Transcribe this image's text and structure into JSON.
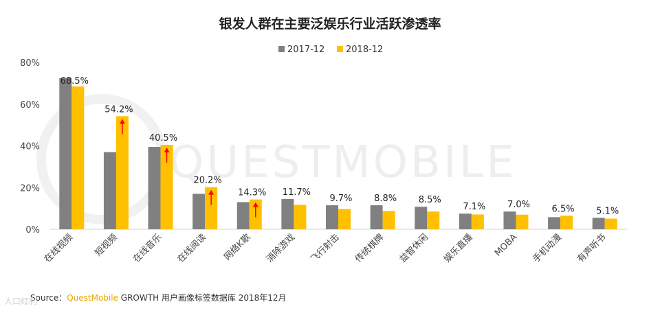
{
  "chart_data": {
    "type": "bar",
    "title": "银发人群在主要泛娱乐行业活跃渗透率",
    "categories": [
      "在线视频",
      "短视频",
      "在线音乐",
      "在线阅读",
      "网络K歌",
      "消除游戏",
      "飞行射击",
      "传统棋牌",
      "益智休闲",
      "娱乐直播",
      "MOBA",
      "手机动漫",
      "有声听书"
    ],
    "series": [
      {
        "name": "2017-12",
        "values": [
          72.5,
          37.0,
          39.5,
          17.0,
          13.0,
          14.5,
          11.5,
          11.5,
          10.8,
          7.5,
          8.5,
          5.8,
          5.5
        ]
      },
      {
        "name": "2018-12",
        "values": [
          68.5,
          54.2,
          40.5,
          20.2,
          14.3,
          11.7,
          9.7,
          8.8,
          8.5,
          7.1,
          7.0,
          6.5,
          5.1
        ]
      }
    ],
    "data_labels": [
      "68.5%",
      "54.2%",
      "40.5%",
      "20.2%",
      "14.3%",
      "11.7%",
      "9.7%",
      "8.8%",
      "8.5%",
      "7.1%",
      "7.0%",
      "6.5%",
      "5.1%"
    ],
    "highlight_arrows": [
      "短视频",
      "在线音乐",
      "在线阅读",
      "网络K歌"
    ],
    "y_ticks": [
      "0%",
      "20%",
      "40%",
      "60%",
      "80%"
    ],
    "ylim": [
      0,
      80
    ],
    "legend_position": "top-center",
    "grid": false,
    "colors": {
      "2017-12": "#808080",
      "2018-12": "#ffc000",
      "arrow": "#ff0000"
    }
  },
  "watermark": "QUESTMOBILE",
  "footer": {
    "source_prefix": "Source：",
    "brand": "QuestMobile",
    "source_rest": " GROWTH 用户画像标签数据库 2018年12月"
  },
  "corner_watermark": "人口红利"
}
